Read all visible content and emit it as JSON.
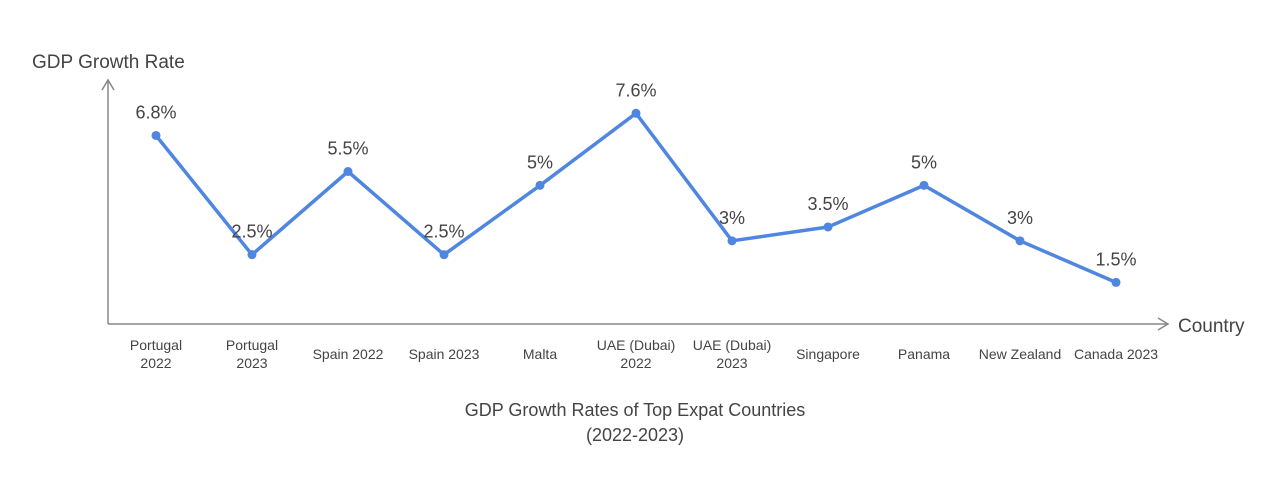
{
  "chart_data": {
    "type": "line",
    "title": "GDP Growth Rates of Top Expat Countries",
    "subtitle": "(2022-2023)",
    "xlabel": "Country",
    "ylabel": "GDP Growth Rate",
    "categories": [
      [
        "Portugal",
        "2022"
      ],
      [
        "Portugal",
        "2023"
      ],
      [
        "Spain 2022"
      ],
      [
        "Spain 2023"
      ],
      [
        "Malta"
      ],
      [
        "UAE (Dubai)",
        "2022"
      ],
      [
        "UAE (Dubai)",
        "2023"
      ],
      [
        "Singapore"
      ],
      [
        "Panama"
      ],
      [
        "New Zealand"
      ],
      [
        "Canada 2023"
      ]
    ],
    "values": [
      6.8,
      2.5,
      5.5,
      2.5,
      5,
      7.6,
      3,
      3.5,
      5,
      3,
      1.5
    ],
    "value_labels": [
      "6.8%",
      "2.5%",
      "5.5%",
      "2.5%",
      "5%",
      "7.6%",
      "3%",
      "3.5%",
      "5%",
      "3%",
      "1.5%"
    ],
    "ylim": [
      0,
      8.8
    ],
    "grid": false,
    "series_color": "#4f86e0",
    "axis_color": "#888888"
  }
}
